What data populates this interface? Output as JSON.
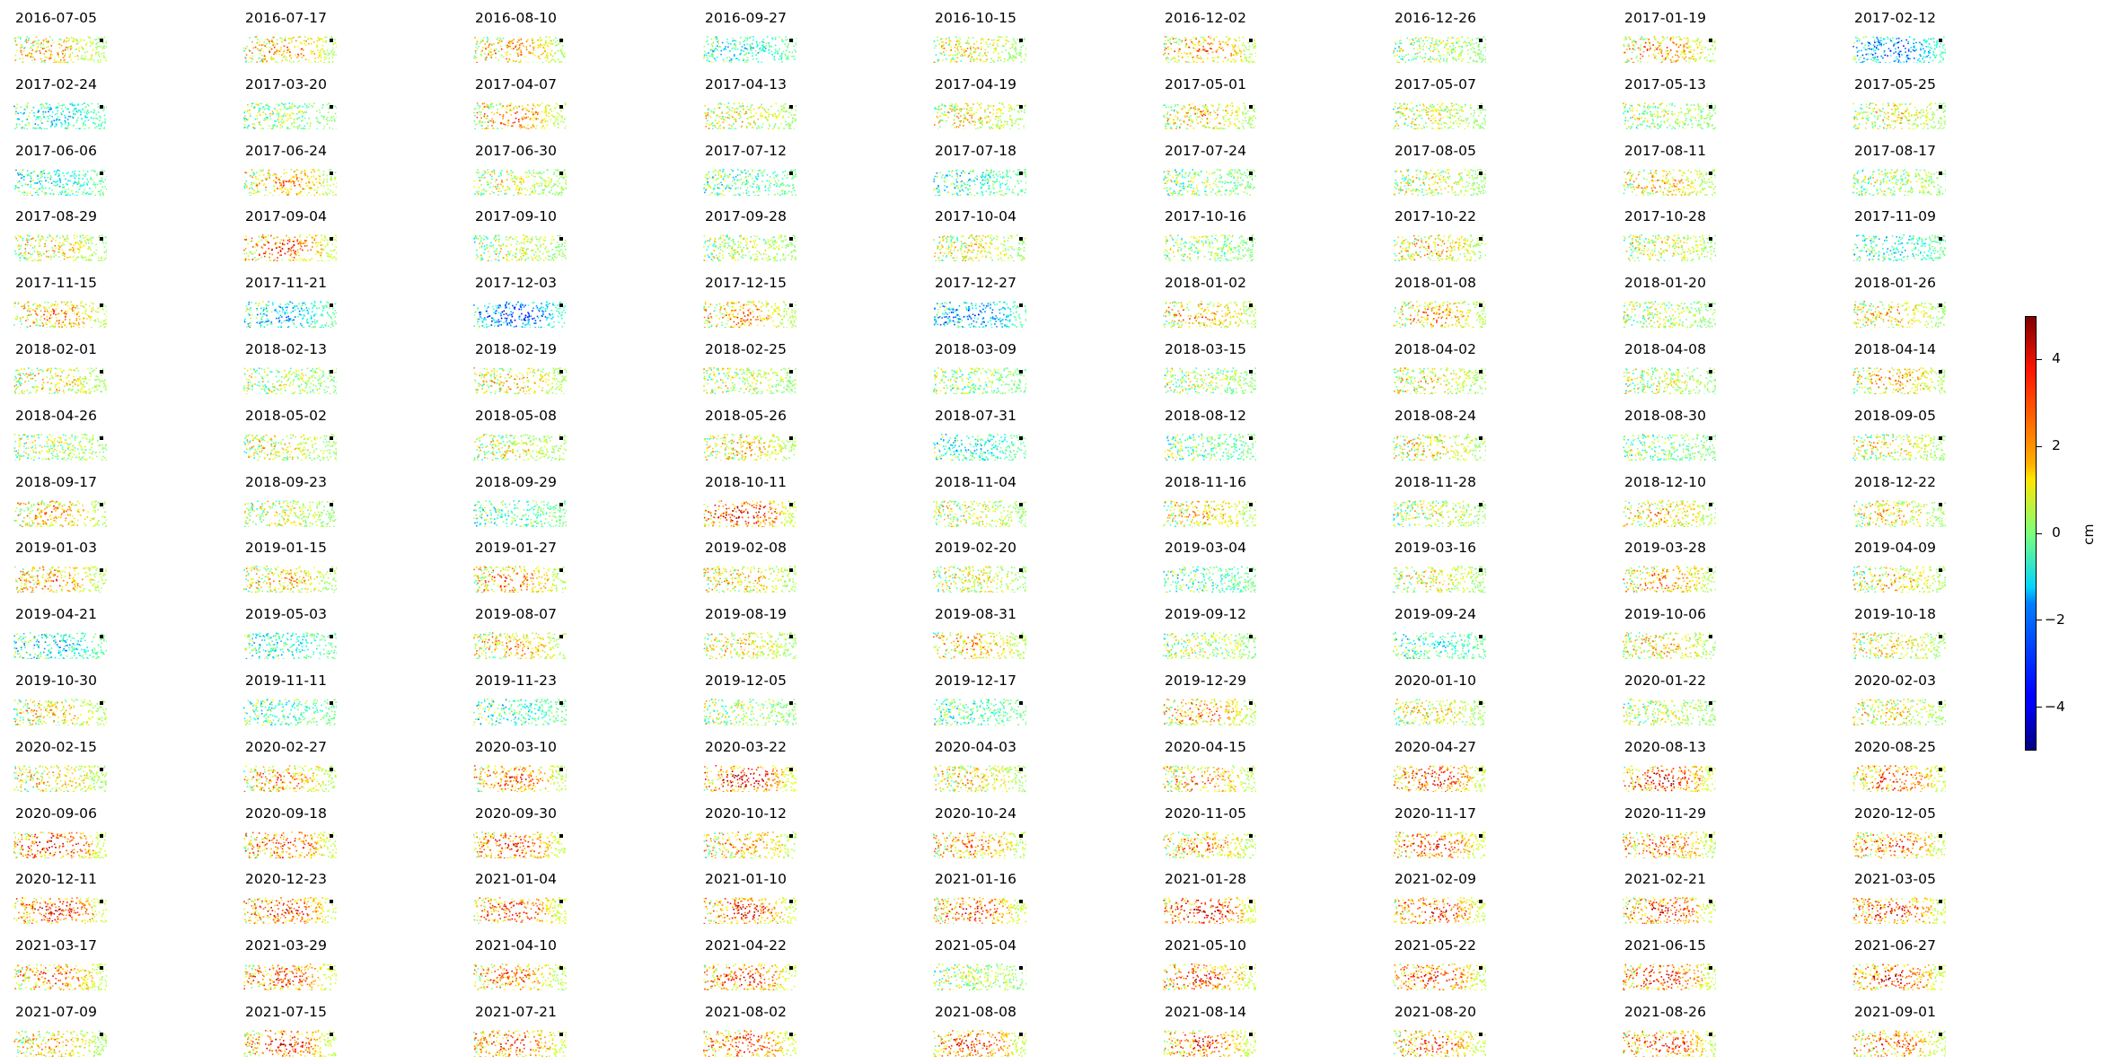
{
  "chart_data": {
    "type": "heatmap",
    "title": "",
    "panel_titles": [
      "2016-07-05",
      "2016-07-17",
      "2016-08-10",
      "2016-09-27",
      "2016-10-15",
      "2016-12-02",
      "2016-12-26",
      "2017-01-19",
      "2017-02-12",
      "2017-02-24",
      "2017-03-20",
      "2017-04-07",
      "2017-04-13",
      "2017-04-19",
      "2017-05-01",
      "2017-05-07",
      "2017-05-13",
      "2017-05-25",
      "2017-06-06",
      "2017-06-24",
      "2017-06-30",
      "2017-07-12",
      "2017-07-18",
      "2017-07-24",
      "2017-08-05",
      "2017-08-11",
      "2017-08-17",
      "2017-08-29",
      "2017-09-04",
      "2017-09-10",
      "2017-09-28",
      "2017-10-04",
      "2017-10-16",
      "2017-10-22",
      "2017-10-28",
      "2017-11-09",
      "2017-11-15",
      "2017-11-21",
      "2017-12-03",
      "2017-12-15",
      "2017-12-27",
      "2018-01-02",
      "2018-01-08",
      "2018-01-20",
      "2018-01-26",
      "2018-02-01",
      "2018-02-13",
      "2018-02-19",
      "2018-02-25",
      "2018-03-09",
      "2018-03-15",
      "2018-04-02",
      "2018-04-08",
      "2018-04-14",
      "2018-04-26",
      "2018-05-02",
      "2018-05-08",
      "2018-05-26",
      "2018-07-31",
      "2018-08-12",
      "2018-08-24",
      "2018-08-30",
      "2018-09-05",
      "2018-09-17",
      "2018-09-23",
      "2018-09-29",
      "2018-10-11",
      "2018-11-04",
      "2018-11-16",
      "2018-11-28",
      "2018-12-10",
      "2018-12-22",
      "2019-01-03",
      "2019-01-15",
      "2019-01-27",
      "2019-02-08",
      "2019-02-20",
      "2019-03-04",
      "2019-03-16",
      "2019-03-28",
      "2019-04-09",
      "2019-04-21",
      "2019-05-03",
      "2019-08-07",
      "2019-08-19",
      "2019-08-31",
      "2019-09-12",
      "2019-09-24",
      "2019-10-06",
      "2019-10-18",
      "2019-10-30",
      "2019-11-11",
      "2019-11-23",
      "2019-12-05",
      "2019-12-17",
      "2019-12-29",
      "2020-01-10",
      "2020-01-22",
      "2020-02-03",
      "2020-02-15",
      "2020-02-27",
      "2020-03-10",
      "2020-03-22",
      "2020-04-03",
      "2020-04-15",
      "2020-04-27",
      "2020-08-13",
      "2020-08-25",
      "2020-09-06",
      "2020-09-18",
      "2020-09-30",
      "2020-10-12",
      "2020-10-24",
      "2020-11-05",
      "2020-11-17",
      "2020-11-29",
      "2020-12-05",
      "2020-12-11",
      "2020-12-23",
      "2021-01-04",
      "2021-01-10",
      "2021-01-16",
      "2021-01-28",
      "2021-02-09",
      "2021-02-21",
      "2021-03-05",
      "2021-03-17",
      "2021-03-29",
      "2021-04-10",
      "2021-04-22",
      "2021-05-04",
      "2021-05-10",
      "2021-05-22",
      "2021-06-15",
      "2021-06-27",
      "2021-07-09",
      "2021-07-15",
      "2021-07-21",
      "2021-08-02",
      "2021-08-08",
      "2021-08-14",
      "2021-08-20",
      "2021-08-26",
      "2021-09-01"
    ],
    "grid": {
      "rows": 16,
      "cols": 9
    },
    "colorbar": {
      "label": "cm",
      "ticks": [
        4,
        2,
        0,
        -2,
        -4
      ],
      "vmin": -5,
      "vmax": 5,
      "colormap": "jet"
    },
    "axes_visible": false,
    "point_map": true,
    "mean_displacement_cm": [
      1.5,
      2.0,
      1.8,
      -1.0,
      1.2,
      2.2,
      0.5,
      2.0,
      -2.5,
      -1.2,
      0.3,
      2.0,
      1.0,
      1.2,
      1.5,
      0.8,
      0.5,
      1.2,
      -0.8,
      2.0,
      0.8,
      -0.5,
      -0.8,
      0.2,
      0.8,
      1.5,
      0.5,
      1.2,
      2.8,
      0.8,
      0.8,
      1.0,
      0.2,
      1.5,
      1.0,
      -1.0,
      2.0,
      -1.5,
      -2.8,
      2.0,
      -2.0,
      1.8,
      2.0,
      0.5,
      1.5,
      1.2,
      0.5,
      1.5,
      0.8,
      0.0,
      0.5,
      1.2,
      0.8,
      1.8,
      0.5,
      1.0,
      1.0,
      1.5,
      -1.0,
      -0.2,
      1.2,
      0.0,
      1.0,
      2.0,
      0.8,
      -0.5,
      3.2,
      1.0,
      1.5,
      0.8,
      1.5,
      1.2,
      2.0,
      1.5,
      2.2,
      1.5,
      1.0,
      -0.5,
      1.0,
      2.0,
      1.5,
      -1.2,
      -0.8,
      1.8,
      1.2,
      1.8,
      0.5,
      -0.8,
      1.5,
      1.2,
      1.5,
      -0.5,
      -0.8,
      0.5,
      -0.5,
      2.0,
      1.2,
      0.8,
      1.2,
      1.5,
      2.0,
      2.5,
      3.5,
      1.5,
      2.0,
      3.0,
      3.2,
      2.8,
      3.2,
      2.8,
      2.8,
      2.0,
      2.2,
      2.0,
      3.0,
      2.5,
      2.5,
      3.2,
      2.8,
      3.0,
      3.0,
      2.8,
      3.5,
      3.0,
      3.0,
      3.0,
      2.5,
      2.8,
      2.2,
      3.0,
      0.5,
      2.8,
      2.8,
      3.0,
      3.0,
      1.5,
      3.0,
      2.8,
      3.0,
      2.8,
      2.8,
      2.5,
      2.8,
      2.5
    ]
  }
}
